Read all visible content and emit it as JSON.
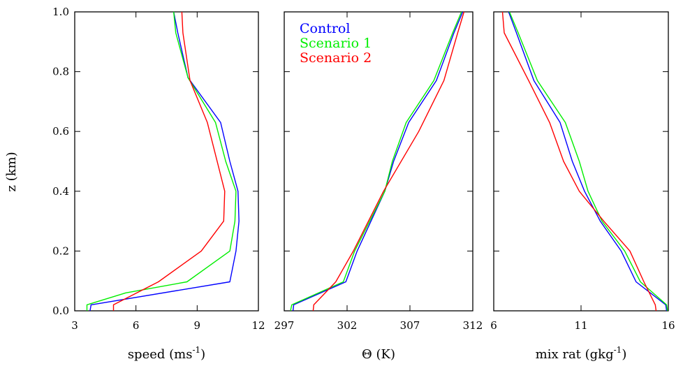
{
  "figure": {
    "ylabel": "z (km)"
  },
  "chart_data": [
    {
      "type": "line",
      "xlabel": "speed (ms",
      "xlabel_sup": "-1",
      "xlabel_tail": ")",
      "ylabel": "z (km)",
      "xlim": [
        3,
        12
      ],
      "ylim": [
        0,
        1
      ],
      "xticks": [
        3,
        6,
        9,
        12
      ],
      "yticks": [
        0.0,
        0.2,
        0.4,
        0.6,
        0.8,
        1.0
      ],
      "ytick_labels": [
        "0.0",
        "0.2",
        "0.4",
        "0.6",
        "0.8",
        "1.0"
      ],
      "show_ytick_labels": true,
      "grid": false,
      "series": [
        {
          "name": "Control",
          "color": "#0000ff",
          "points": [
            [
              3.75,
              0.0
            ],
            [
              3.8,
              0.02
            ],
            [
              10.6,
              0.097
            ],
            [
              10.9,
              0.2
            ],
            [
              11.05,
              0.3
            ],
            [
              11.0,
              0.4
            ],
            [
              10.6,
              0.5
            ],
            [
              10.15,
              0.63
            ],
            [
              8.55,
              0.78
            ],
            [
              8.05,
              0.93
            ],
            [
              7.85,
              1.0
            ]
          ]
        },
        {
          "name": "Scenario 1",
          "color": "#00ee00",
          "points": [
            [
              3.6,
              0.0
            ],
            [
              3.6,
              0.02
            ],
            [
              5.5,
              0.06
            ],
            [
              8.5,
              0.097
            ],
            [
              10.6,
              0.2
            ],
            [
              10.85,
              0.3
            ],
            [
              10.9,
              0.4
            ],
            [
              10.4,
              0.5
            ],
            [
              9.9,
              0.63
            ],
            [
              8.55,
              0.78
            ],
            [
              7.95,
              0.93
            ],
            [
              7.85,
              1.0
            ]
          ]
        },
        {
          "name": "Scenario 2",
          "color": "#ff0000",
          "points": [
            [
              4.9,
              0.0
            ],
            [
              4.9,
              0.02
            ],
            [
              7.1,
              0.097
            ],
            [
              9.2,
              0.2
            ],
            [
              10.3,
              0.3
            ],
            [
              10.35,
              0.4
            ],
            [
              9.5,
              0.63
            ],
            [
              8.65,
              0.77
            ],
            [
              8.3,
              0.93
            ],
            [
              8.25,
              1.0
            ]
          ]
        }
      ]
    },
    {
      "type": "line",
      "xlabel": "Θ (K)",
      "xlim": [
        297,
        312
      ],
      "ylim": [
        0,
        1
      ],
      "xticks": [
        297,
        302,
        307,
        312
      ],
      "yticks": [
        0.0,
        0.2,
        0.4,
        0.6,
        0.8,
        1.0
      ],
      "show_ytick_labels": false,
      "grid": false,
      "legend": {
        "position": "top-left",
        "entries": [
          "Control",
          "Scenario 1",
          "Scenario 2"
        ]
      },
      "series": [
        {
          "name": "Control",
          "color": "#0000ff",
          "points": [
            [
              297.7,
              0.0
            ],
            [
              297.75,
              0.02
            ],
            [
              301.9,
              0.097
            ],
            [
              302.8,
              0.2
            ],
            [
              305.0,
              0.4
            ],
            [
              305.7,
              0.5
            ],
            [
              306.9,
              0.63
            ],
            [
              309.1,
              0.77
            ],
            [
              310.5,
              0.93
            ],
            [
              311.2,
              1.0
            ]
          ]
        },
        {
          "name": "Scenario 1",
          "color": "#00ee00",
          "points": [
            [
              297.5,
              0.0
            ],
            [
              297.6,
              0.02
            ],
            [
              301.7,
              0.097
            ],
            [
              302.6,
              0.2
            ],
            [
              305.0,
              0.4
            ],
            [
              305.6,
              0.5
            ],
            [
              306.7,
              0.63
            ],
            [
              308.9,
              0.77
            ],
            [
              310.4,
              0.93
            ],
            [
              311.1,
              1.0
            ]
          ]
        },
        {
          "name": "Scenario 2",
          "color": "#ff0000",
          "points": [
            [
              299.3,
              0.0
            ],
            [
              299.35,
              0.02
            ],
            [
              301.1,
              0.097
            ],
            [
              302.5,
              0.2
            ],
            [
              303.7,
              0.3
            ],
            [
              304.9,
              0.4
            ],
            [
              307.7,
              0.6
            ],
            [
              309.7,
              0.77
            ],
            [
              310.8,
              0.93
            ],
            [
              311.3,
              1.0
            ]
          ]
        }
      ]
    },
    {
      "type": "line",
      "xlabel": "mix rat (gkg",
      "xlabel_sup": "-1",
      "xlabel_tail": ")",
      "xlim": [
        6,
        16
      ],
      "ylim": [
        0,
        1
      ],
      "xticks": [
        6,
        11,
        16
      ],
      "yticks": [
        0.0,
        0.2,
        0.4,
        0.6,
        0.8,
        1.0
      ],
      "show_ytick_labels": false,
      "grid": false,
      "series": [
        {
          "name": "Control",
          "color": "#0000ff",
          "points": [
            [
              15.9,
              0.0
            ],
            [
              15.85,
              0.02
            ],
            [
              14.15,
              0.097
            ],
            [
              13.3,
              0.2
            ],
            [
              12.1,
              0.3
            ],
            [
              11.2,
              0.4
            ],
            [
              10.5,
              0.5
            ],
            [
              9.8,
              0.63
            ],
            [
              8.3,
              0.77
            ],
            [
              7.3,
              0.93
            ],
            [
              6.85,
              1.0
            ]
          ]
        },
        {
          "name": "Scenario 1",
          "color": "#00ee00",
          "points": [
            [
              15.95,
              0.0
            ],
            [
              15.9,
              0.02
            ],
            [
              14.4,
              0.097
            ],
            [
              13.5,
              0.2
            ],
            [
              12.2,
              0.3
            ],
            [
              11.4,
              0.4
            ],
            [
              10.9,
              0.5
            ],
            [
              10.1,
              0.63
            ],
            [
              8.5,
              0.77
            ],
            [
              7.4,
              0.93
            ],
            [
              6.9,
              1.0
            ]
          ]
        },
        {
          "name": "Scenario 2",
          "color": "#ff0000",
          "points": [
            [
              15.3,
              0.0
            ],
            [
              15.25,
              0.02
            ],
            [
              14.6,
              0.097
            ],
            [
              13.8,
              0.2
            ],
            [
              12.3,
              0.3
            ],
            [
              10.9,
              0.4
            ],
            [
              10.0,
              0.5
            ],
            [
              9.2,
              0.63
            ],
            [
              8.0,
              0.77
            ],
            [
              6.6,
              0.93
            ],
            [
              6.5,
              1.0
            ]
          ]
        }
      ]
    }
  ]
}
